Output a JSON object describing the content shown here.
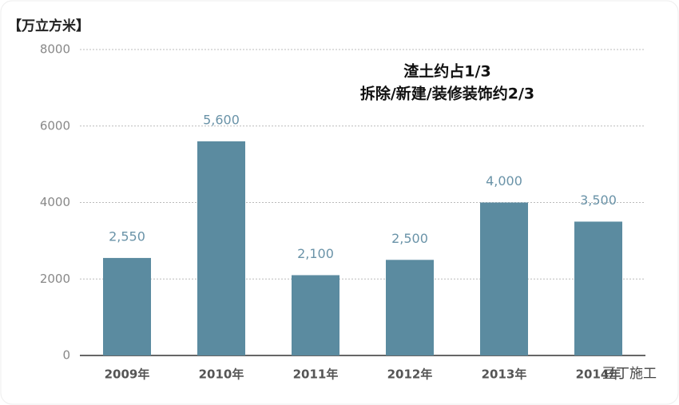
{
  "chart_data": {
    "type": "bar",
    "y_axis_label": "【万立方米】",
    "annotations": [
      "渣土约占1/3",
      "拆除/新建/装修装饰约2/3"
    ],
    "watermark": "豆丁施工",
    "categories": [
      "2009年",
      "2010年",
      "2011年",
      "2012年",
      "2013年",
      "2014年"
    ],
    "values": [
      2550,
      5600,
      2100,
      2500,
      4000,
      3500
    ],
    "value_labels": [
      "2,550",
      "5,600",
      "2,100",
      "2,500",
      "4,000",
      "3,500"
    ],
    "color": "#5b8ba0",
    "ylim": [
      0,
      8000
    ],
    "yticks": [
      0,
      2000,
      4000,
      6000,
      8000
    ],
    "grid": true
  }
}
